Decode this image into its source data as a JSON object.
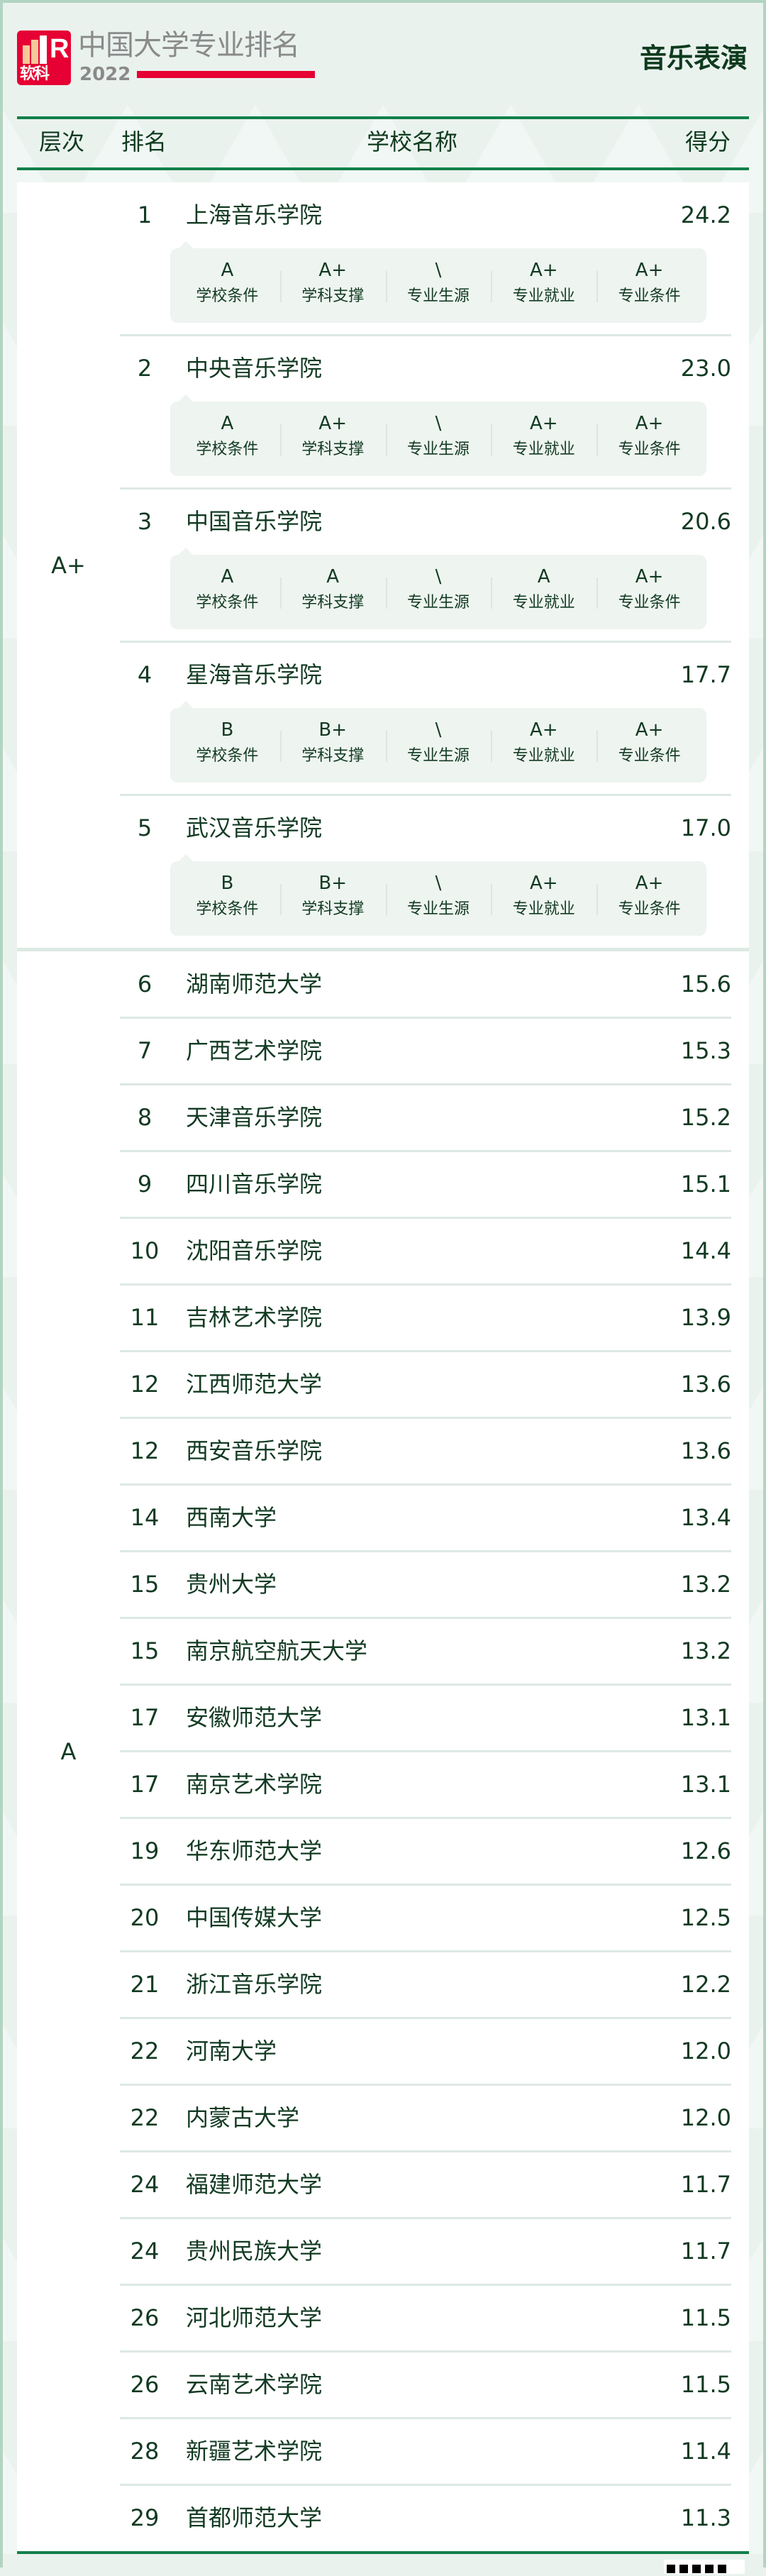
{
  "header": {
    "brand": "中国大学专业排名",
    "year": "2022",
    "logo_text": "软科",
    "major": "音乐表演",
    "accent": "#e60033",
    "theme": "#12804a"
  },
  "columns": {
    "tier": "层次",
    "rank": "排名",
    "name": "学校名称",
    "score": "得分"
  },
  "grade_labels": [
    "学校条件",
    "学科支撑",
    "专业生源",
    "专业就业",
    "专业条件"
  ],
  "tiers": [
    {
      "label": "A+",
      "rows": [
        {
          "rank": "1",
          "name": "上海音乐学院",
          "score": "24.2",
          "grades": [
            "A",
            "A+",
            "\\",
            "A+",
            "A+"
          ]
        },
        {
          "rank": "2",
          "name": "中央音乐学院",
          "score": "23.0",
          "grades": [
            "A",
            "A+",
            "\\",
            "A+",
            "A+"
          ]
        },
        {
          "rank": "3",
          "name": "中国音乐学院",
          "score": "20.6",
          "grades": [
            "A",
            "A",
            "\\",
            "A",
            "A+"
          ]
        },
        {
          "rank": "4",
          "name": "星海音乐学院",
          "score": "17.7",
          "grades": [
            "B",
            "B+",
            "\\",
            "A+",
            "A+"
          ]
        },
        {
          "rank": "5",
          "name": "武汉音乐学院",
          "score": "17.0",
          "grades": [
            "B",
            "B+",
            "\\",
            "A+",
            "A+"
          ]
        }
      ]
    },
    {
      "label": "A",
      "rows": [
        {
          "rank": "6",
          "name": "湖南师范大学",
          "score": "15.6"
        },
        {
          "rank": "7",
          "name": "广西艺术学院",
          "score": "15.3"
        },
        {
          "rank": "8",
          "name": "天津音乐学院",
          "score": "15.2"
        },
        {
          "rank": "9",
          "name": "四川音乐学院",
          "score": "15.1"
        },
        {
          "rank": "10",
          "name": "沈阳音乐学院",
          "score": "14.4"
        },
        {
          "rank": "11",
          "name": "吉林艺术学院",
          "score": "13.9"
        },
        {
          "rank": "12",
          "name": "江西师范大学",
          "score": "13.6"
        },
        {
          "rank": "12",
          "name": "西安音乐学院",
          "score": "13.6"
        },
        {
          "rank": "14",
          "name": "西南大学",
          "score": "13.4"
        },
        {
          "rank": "15",
          "name": "贵州大学",
          "score": "13.2"
        },
        {
          "rank": "15",
          "name": "南京航空航天大学",
          "score": "13.2"
        },
        {
          "rank": "17",
          "name": "安徽师范大学",
          "score": "13.1"
        },
        {
          "rank": "17",
          "name": "南京艺术学院",
          "score": "13.1"
        },
        {
          "rank": "19",
          "name": "华东师范大学",
          "score": "12.6"
        },
        {
          "rank": "20",
          "name": "中国传媒大学",
          "score": "12.5"
        },
        {
          "rank": "21",
          "name": "浙江音乐学院",
          "score": "12.2"
        },
        {
          "rank": "22",
          "name": "河南大学",
          "score": "12.0"
        },
        {
          "rank": "22",
          "name": "内蒙古大学",
          "score": "12.0"
        },
        {
          "rank": "24",
          "name": "福建师范大学",
          "score": "11.7"
        },
        {
          "rank": "24",
          "name": "贵州民族大学",
          "score": "11.7"
        },
        {
          "rank": "26",
          "name": "河北师范大学",
          "score": "11.5"
        },
        {
          "rank": "26",
          "name": "云南艺术学院",
          "score": "11.5"
        },
        {
          "rank": "28",
          "name": "新疆艺术学院",
          "score": "11.4"
        },
        {
          "rank": "29",
          "name": "首都师范大学",
          "score": "11.3"
        }
      ]
    }
  ]
}
